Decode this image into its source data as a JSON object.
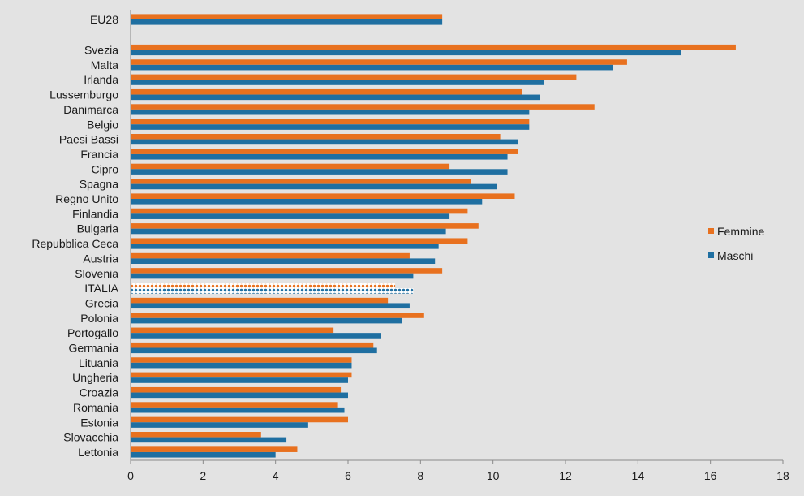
{
  "chart_data": {
    "type": "bar",
    "orientation": "horizontal",
    "categories": [
      "EU28",
      "Svezia",
      "Malta",
      "Irlanda",
      "Lussemburgo",
      "Danimarca",
      "Belgio",
      "Paesi Bassi",
      "Francia",
      "Cipro",
      "Spagna",
      "Regno Unito",
      "Finlandia",
      "Bulgaria",
      "Repubblica Ceca",
      "Austria",
      "Slovenia",
      "ITALIA",
      "Grecia",
      "Polonia",
      "Portogallo",
      "Germania",
      "Lituania",
      "Ungheria",
      "Croazia",
      "Romania",
      "Estonia",
      "Slovacchia",
      "Lettonia"
    ],
    "highlight_category": "ITALIA",
    "series": [
      {
        "name": "Femmine",
        "color": "#e8711f",
        "values": [
          8.6,
          16.7,
          13.7,
          12.3,
          10.8,
          12.8,
          11.0,
          10.2,
          10.7,
          8.8,
          9.4,
          10.6,
          9.3,
          9.6,
          9.3,
          7.7,
          8.6,
          7.3,
          7.1,
          8.1,
          5.6,
          6.7,
          6.1,
          6.1,
          5.8,
          5.7,
          6.0,
          3.6,
          4.6
        ]
      },
      {
        "name": "Maschi",
        "color": "#1f6fa1",
        "values": [
          8.6,
          15.2,
          13.3,
          11.4,
          11.3,
          11.0,
          11.0,
          10.7,
          10.4,
          10.4,
          10.1,
          9.7,
          8.8,
          8.7,
          8.5,
          8.4,
          7.8,
          7.8,
          7.7,
          7.5,
          6.9,
          6.8,
          6.1,
          6.0,
          6.0,
          5.9,
          4.9,
          4.3,
          4.0
        ]
      }
    ],
    "xlim": [
      0,
      18
    ],
    "xticks": [
      "0",
      "2",
      "4",
      "6",
      "8",
      "10",
      "12",
      "14",
      "16",
      "18"
    ],
    "legend_position": "right",
    "title": "",
    "xlabel": "",
    "ylabel": ""
  }
}
